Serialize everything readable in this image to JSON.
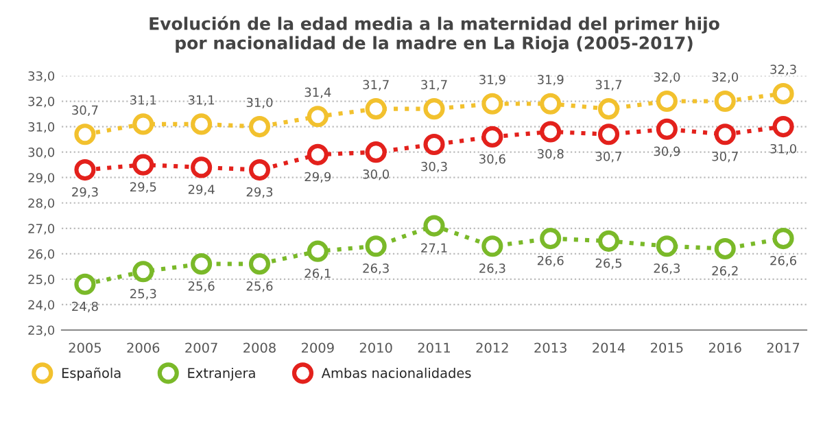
{
  "chart_data": {
    "type": "line",
    "title": "Evolución de la edad media a la maternidad del primer hijo\npor nacionalidad de la madre en La Rioja (2005-2017)",
    "categories": [
      "2005",
      "2006",
      "2007",
      "2008",
      "2009",
      "2010",
      "2011",
      "2012",
      "2013",
      "2014",
      "2015",
      "2016",
      "2017"
    ],
    "series": [
      {
        "name": "Española",
        "color": "#f2c12e",
        "values": [
          30.7,
          31.1,
          31.1,
          31.0,
          31.4,
          31.7,
          31.7,
          31.9,
          31.9,
          31.7,
          32.0,
          32.0,
          32.3
        ],
        "value_labels": [
          "30,7",
          "31,1",
          "31,1",
          "31,0",
          "31,4",
          "31,7",
          "31,7",
          "31,9",
          "31,9",
          "31,7",
          "32,0",
          "32,0",
          "32,3"
        ]
      },
      {
        "name": "Extranjera",
        "color": "#7ab929",
        "values": [
          24.8,
          25.3,
          25.6,
          25.6,
          26.1,
          26.3,
          27.1,
          26.3,
          26.6,
          26.5,
          26.3,
          26.2,
          26.6
        ],
        "value_labels": [
          "24,8",
          "25,3",
          "25,6",
          "25,6",
          "26,1",
          "26,3",
          "27,1",
          "26,3",
          "26,6",
          "26,5",
          "26,3",
          "26,2",
          "26,6"
        ]
      },
      {
        "name": "Ambas nacionalidades",
        "color": "#e3211c",
        "values": [
          29.3,
          29.5,
          29.4,
          29.3,
          29.9,
          30.0,
          30.3,
          30.6,
          30.8,
          30.7,
          30.9,
          30.7,
          31.0
        ],
        "value_labels": [
          "29,3",
          "29,5",
          "29,4",
          "29,3",
          "29,9",
          "30,0",
          "30,3",
          "30,6",
          "30,8",
          "30,7",
          "30,9",
          "30,7",
          "31,0"
        ]
      }
    ],
    "ylim": [
      23,
      33
    ],
    "yticks": [
      {
        "value": 23,
        "label": "23,0"
      },
      {
        "value": 24,
        "label": "24,0"
      },
      {
        "value": 25,
        "label": "25,0"
      },
      {
        "value": 26,
        "label": "26,0"
      },
      {
        "value": 27,
        "label": "27,0"
      },
      {
        "value": 28,
        "label": "28,0"
      },
      {
        "value": 29,
        "label": "29,0"
      },
      {
        "value": 30,
        "label": "30,0"
      },
      {
        "value": 31,
        "label": "31,0"
      },
      {
        "value": 32,
        "label": "32,0"
      },
      {
        "value": 33,
        "label": "33,0"
      }
    ],
    "grid": "y",
    "legend": "bottom left",
    "marker": "circle",
    "line_style": "dotted"
  }
}
